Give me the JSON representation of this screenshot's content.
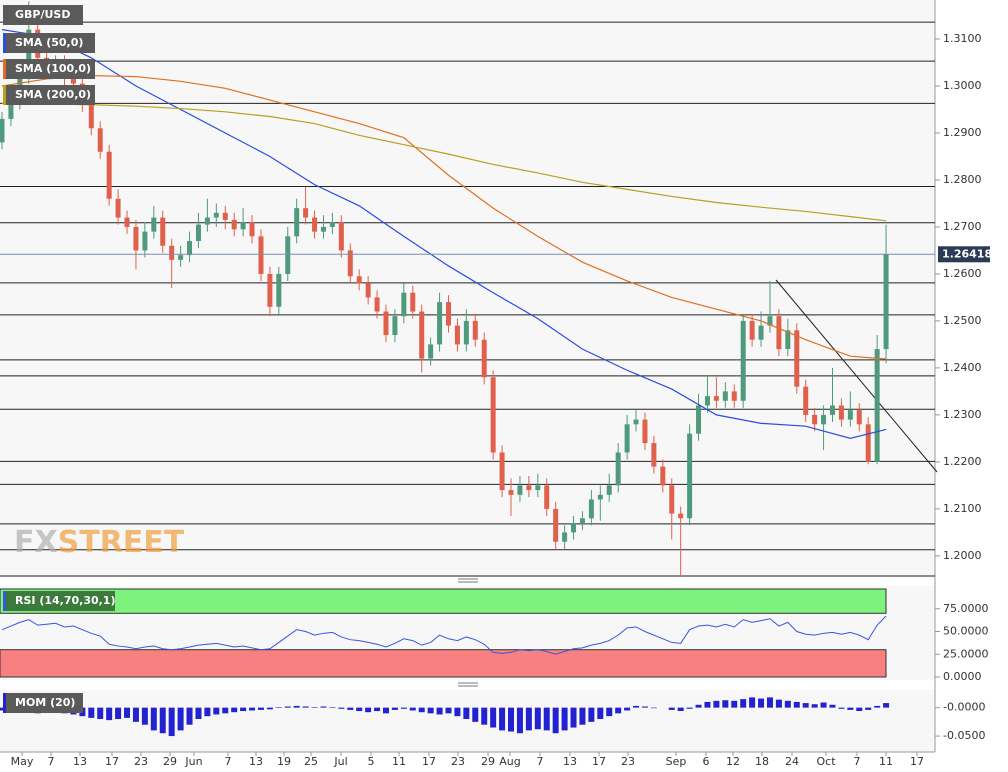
{
  "chart_data": [
    {
      "type": "candlestick",
      "title": "GBP/USD",
      "up_color": "#4f9a7c",
      "down_color": "#e0604c",
      "ohlc": [
        [
          1.288,
          1.2945,
          1.2865,
          1.293
        ],
        [
          1.293,
          1.298,
          1.2915,
          1.2965
        ],
        [
          1.2965,
          1.3035,
          1.295,
          1.302
        ],
        [
          1.302,
          1.318,
          1.3005,
          1.312
        ],
        [
          1.312,
          1.3135,
          1.3045,
          1.306
        ],
        [
          1.306,
          1.3075,
          1.302,
          1.3035
        ],
        [
          1.3035,
          1.3065,
          1.302,
          1.305
        ],
        [
          1.305,
          1.3065,
          1.3,
          1.3015
        ],
        [
          1.3015,
          1.303,
          1.299,
          1.3005
        ],
        [
          1.3005,
          1.302,
          1.2945,
          1.296
        ],
        [
          1.296,
          1.2975,
          1.2895,
          1.291
        ],
        [
          1.291,
          1.2925,
          1.2845,
          1.286
        ],
        [
          1.286,
          1.2875,
          1.2745,
          1.276
        ],
        [
          1.276,
          1.278,
          1.2705,
          1.272
        ],
        [
          1.272,
          1.2735,
          1.2685,
          1.27
        ],
        [
          1.27,
          1.2715,
          1.261,
          1.265
        ],
        [
          1.265,
          1.271,
          1.2635,
          1.269
        ],
        [
          1.269,
          1.2745,
          1.2675,
          1.272
        ],
        [
          1.272,
          1.2735,
          1.2645,
          1.266
        ],
        [
          1.266,
          1.2675,
          1.257,
          1.263
        ],
        [
          1.263,
          1.266,
          1.2615,
          1.264
        ],
        [
          1.264,
          1.269,
          1.2625,
          1.267
        ],
        [
          1.267,
          1.273,
          1.2655,
          1.2705
        ],
        [
          1.2705,
          1.276,
          1.269,
          1.272
        ],
        [
          1.272,
          1.275,
          1.27,
          1.273
        ],
        [
          1.273,
          1.2745,
          1.2695,
          1.2715
        ],
        [
          1.2715,
          1.273,
          1.268,
          1.2695
        ],
        [
          1.2695,
          1.274,
          1.268,
          1.271
        ],
        [
          1.271,
          1.2725,
          1.2665,
          1.268
        ],
        [
          1.268,
          1.2695,
          1.2585,
          1.26
        ],
        [
          1.26,
          1.2615,
          1.251,
          1.253
        ],
        [
          1.253,
          1.2615,
          1.2515,
          1.26
        ],
        [
          1.26,
          1.27,
          1.2585,
          1.268
        ],
        [
          1.268,
          1.276,
          1.2665,
          1.274
        ],
        [
          1.274,
          1.2785,
          1.2705,
          1.272
        ],
        [
          1.272,
          1.2735,
          1.2675,
          1.269
        ],
        [
          1.269,
          1.2725,
          1.2675,
          1.27
        ],
        [
          1.27,
          1.273,
          1.2685,
          1.271
        ],
        [
          1.271,
          1.2725,
          1.2635,
          1.265
        ],
        [
          1.265,
          1.2665,
          1.258,
          1.2595
        ],
        [
          1.2595,
          1.261,
          1.2565,
          1.258
        ],
        [
          1.258,
          1.2595,
          1.2535,
          1.255
        ],
        [
          1.255,
          1.2565,
          1.2505,
          1.252
        ],
        [
          1.252,
          1.2535,
          1.2455,
          1.247
        ],
        [
          1.247,
          1.2525,
          1.2455,
          1.251
        ],
        [
          1.251,
          1.258,
          1.2495,
          1.256
        ],
        [
          1.256,
          1.2575,
          1.2505,
          1.252
        ],
        [
          1.252,
          1.2535,
          1.239,
          1.242
        ],
        [
          1.242,
          1.2465,
          1.2405,
          1.245
        ],
        [
          1.245,
          1.256,
          1.2435,
          1.254
        ],
        [
          1.254,
          1.2555,
          1.2475,
          1.249
        ],
        [
          1.249,
          1.2505,
          1.2435,
          1.245
        ],
        [
          1.245,
          1.2525,
          1.2435,
          1.25
        ],
        [
          1.25,
          1.2515,
          1.2445,
          1.246
        ],
        [
          1.246,
          1.2475,
          1.2365,
          1.238
        ],
        [
          1.238,
          1.2395,
          1.2205,
          1.222
        ],
        [
          1.222,
          1.2235,
          1.2125,
          1.214
        ],
        [
          1.214,
          1.2165,
          1.2085,
          1.213
        ],
        [
          1.213,
          1.217,
          1.2115,
          1.215
        ],
        [
          1.215,
          1.217,
          1.2125,
          1.214
        ],
        [
          1.214,
          1.2175,
          1.2125,
          1.215
        ],
        [
          1.215,
          1.2165,
          1.2085,
          1.21
        ],
        [
          1.21,
          1.2115,
          1.2015,
          1.203
        ],
        [
          1.203,
          1.2065,
          1.2015,
          1.205
        ],
        [
          1.205,
          1.2085,
          1.2035,
          1.207
        ],
        [
          1.207,
          1.2095,
          1.2055,
          1.208
        ],
        [
          1.208,
          1.214,
          1.2065,
          1.212
        ],
        [
          1.212,
          1.215,
          1.2075,
          1.213
        ],
        [
          1.213,
          1.2175,
          1.2115,
          1.215
        ],
        [
          1.215,
          1.224,
          1.2135,
          1.222
        ],
        [
          1.222,
          1.23,
          1.2205,
          1.228
        ],
        [
          1.228,
          1.231,
          1.2265,
          1.229
        ],
        [
          1.229,
          1.2305,
          1.2225,
          1.224
        ],
        [
          1.224,
          1.2255,
          1.2175,
          1.219
        ],
        [
          1.219,
          1.2205,
          1.2135,
          1.215
        ],
        [
          1.215,
          1.2165,
          1.2035,
          1.209
        ],
        [
          1.209,
          1.2105,
          1.1955,
          1.208
        ],
        [
          1.208,
          1.228,
          1.2065,
          1.226
        ],
        [
          1.226,
          1.2345,
          1.2245,
          1.232
        ],
        [
          1.232,
          1.2385,
          1.2305,
          1.234
        ],
        [
          1.234,
          1.238,
          1.2315,
          1.233
        ],
        [
          1.233,
          1.237,
          1.2315,
          1.235
        ],
        [
          1.235,
          1.2365,
          1.2315,
          1.233
        ],
        [
          1.233,
          1.2515,
          1.2315,
          1.25
        ],
        [
          1.25,
          1.2515,
          1.2445,
          1.246
        ],
        [
          1.246,
          1.252,
          1.2445,
          1.249
        ],
        [
          1.249,
          1.2585,
          1.2475,
          1.251
        ],
        [
          1.251,
          1.2525,
          1.2425,
          1.244
        ],
        [
          1.244,
          1.2505,
          1.2425,
          1.248
        ],
        [
          1.248,
          1.2495,
          1.2345,
          1.236
        ],
        [
          1.236,
          1.2375,
          1.2285,
          1.23
        ],
        [
          1.23,
          1.2315,
          1.2265,
          1.228
        ],
        [
          1.228,
          1.232,
          1.2225,
          1.23
        ],
        [
          1.23,
          1.24,
          1.2285,
          1.232
        ],
        [
          1.232,
          1.2335,
          1.2275,
          1.229
        ],
        [
          1.229,
          1.235,
          1.2275,
          1.231
        ],
        [
          1.231,
          1.2325,
          1.2265,
          1.228
        ],
        [
          1.228,
          1.2295,
          1.2195,
          1.22
        ],
        [
          1.22,
          1.247,
          1.2195,
          1.244
        ],
        [
          1.244,
          1.2705,
          1.241,
          1.2642
        ]
      ],
      "series": [
        {
          "name": "SMA (50,0)",
          "color": "#2a4de0",
          "x": [
            0,
            5,
            10,
            15,
            20,
            25,
            30,
            35,
            40,
            45,
            50,
            55,
            60,
            65,
            70,
            75,
            80,
            85,
            90,
            95,
            99
          ],
          "values": [
            1.312,
            1.3105,
            1.306,
            1.3,
            1.295,
            1.29,
            1.285,
            1.279,
            1.2745,
            1.268,
            1.2617,
            1.256,
            1.2505,
            1.244,
            1.2395,
            1.2355,
            1.23,
            1.2282,
            1.2276,
            1.225,
            1.2269
          ]
        },
        {
          "name": "SMA (100,0)",
          "color": "#e07020",
          "x": [
            0,
            5,
            10,
            15,
            20,
            25,
            30,
            35,
            40,
            45,
            50,
            55,
            60,
            65,
            70,
            75,
            80,
            85,
            90,
            95,
            99
          ],
          "values": [
            1.3,
            1.3015,
            1.3022,
            1.302,
            1.301,
            1.2995,
            1.297,
            1.2945,
            1.292,
            1.289,
            1.281,
            1.274,
            1.268,
            1.2625,
            1.2585,
            1.255,
            1.2525,
            1.25,
            1.246,
            1.2425,
            1.2419
          ]
        },
        {
          "name": "SMA (200,0)",
          "color": "#b8a020",
          "x": [
            0,
            5,
            10,
            15,
            20,
            25,
            30,
            35,
            40,
            45,
            50,
            55,
            60,
            65,
            70,
            75,
            80,
            85,
            90,
            95,
            99
          ],
          "values": [
            1.2963,
            1.2962,
            1.296,
            1.2957,
            1.2952,
            1.2945,
            1.2935,
            1.292,
            1.2895,
            1.2875,
            1.2855,
            1.2833,
            1.2815,
            1.2795,
            1.278,
            1.2765,
            1.2752,
            1.2742,
            1.2733,
            1.2722,
            1.2713
          ]
        }
      ],
      "levels": [
        1.3136,
        1.3053,
        1.2963,
        1.2786,
        1.2709,
        1.2581,
        1.2513,
        1.2417,
        1.2383,
        1.2312,
        1.2201,
        1.2152,
        1.2068,
        1.2013,
        1.1957
      ],
      "last_price": 1.26418,
      "ylim": [
        1.1955,
        1.3183
      ],
      "yticks": [
        {
          "value": 1.31,
          "label": "1.3100"
        },
        {
          "value": 1.3,
          "label": "1.3000"
        },
        {
          "value": 1.29,
          "label": "1.2900"
        },
        {
          "value": 1.28,
          "label": "1.2800"
        },
        {
          "value": 1.27,
          "label": "1.2700"
        },
        {
          "value": 1.26,
          "label": "1.2600"
        },
        {
          "value": 1.25,
          "label": "1.2500"
        },
        {
          "value": 1.24,
          "label": "1.2400"
        },
        {
          "value": 1.23,
          "label": "1.2300"
        },
        {
          "value": 1.22,
          "label": "1.2200"
        },
        {
          "value": 1.21,
          "label": "1.2100"
        },
        {
          "value": 1.2,
          "label": "1.2000"
        }
      ],
      "x_labels": [
        "May",
        "7",
        "13",
        "17",
        "23",
        "29",
        "Jun",
        "7",
        "13",
        "19",
        "25",
        "Jul",
        "5",
        "11",
        "17",
        "23",
        "29",
        "Aug",
        "7",
        "13",
        "17",
        "23",
        "Sep",
        "6",
        "12",
        "18",
        "24",
        "Oct",
        "7",
        "11",
        "17"
      ],
      "watermark": [
        "FX",
        "STREET"
      ]
    },
    {
      "type": "line",
      "title": "RSI (14,70,30,1)",
      "color": "#3a55e0",
      "values": [
        52,
        56,
        60,
        63,
        57,
        58,
        59,
        55,
        56,
        52,
        48,
        45,
        36,
        34,
        33,
        31,
        33,
        34,
        31,
        30,
        31,
        33,
        35,
        36,
        37,
        35,
        33,
        34,
        32,
        30,
        31,
        38,
        45,
        52,
        50,
        46,
        48,
        49,
        44,
        41,
        40,
        38,
        36,
        33,
        37,
        42,
        40,
        35,
        38,
        46,
        42,
        40,
        44,
        41,
        36,
        27,
        26,
        27,
        30,
        29,
        30,
        28,
        25,
        28,
        31,
        32,
        35,
        37,
        40,
        46,
        54,
        55,
        50,
        46,
        42,
        38,
        37,
        52,
        56,
        57,
        55,
        58,
        55,
        63,
        60,
        62,
        64,
        56,
        60,
        50,
        47,
        46,
        48,
        49,
        47,
        49,
        46,
        41,
        57,
        67
      ],
      "upper": 70,
      "lower": 30,
      "ylim": [
        0,
        100
      ],
      "yticks": [
        {
          "value": 75,
          "label": "75.0000"
        },
        {
          "value": 50,
          "label": "50.0000"
        },
        {
          "value": 25,
          "label": "25.0000"
        },
        {
          "value": 0,
          "label": "0.0000"
        }
      ]
    },
    {
      "type": "bar",
      "title": "MOM (20)",
      "color": "#2222d0",
      "values": [
        -0.005,
        -0.004,
        -0.006,
        -0.008,
        -0.01,
        -0.008,
        -0.009,
        -0.01,
        -0.012,
        -0.015,
        -0.018,
        -0.02,
        -0.022,
        -0.02,
        -0.018,
        -0.025,
        -0.03,
        -0.04,
        -0.045,
        -0.05,
        -0.04,
        -0.03,
        -0.02,
        -0.015,
        -0.012,
        -0.01,
        -0.008,
        -0.006,
        -0.005,
        -0.004,
        -0.003,
        0.001,
        0.002,
        0.003,
        0.002,
        0.001,
        0.002,
        0.001,
        -0.002,
        -0.004,
        -0.006,
        -0.008,
        -0.006,
        -0.01,
        -0.004,
        -0.002,
        -0.005,
        -0.008,
        -0.01,
        -0.012,
        -0.01,
        -0.015,
        -0.02,
        -0.025,
        -0.03,
        -0.035,
        -0.04,
        -0.042,
        -0.045,
        -0.04,
        -0.038,
        -0.04,
        -0.045,
        -0.04,
        -0.035,
        -0.03,
        -0.025,
        -0.02,
        -0.015,
        -0.01,
        -0.005,
        0.003,
        0.002,
        -0.001,
        0,
        -0.004,
        -0.006,
        -0.002,
        0.005,
        0.01,
        0.012,
        0.013,
        0.012,
        0.015,
        0.018,
        0.016,
        0.018,
        0.014,
        0.012,
        0.01,
        0.008,
        0.006,
        0.009,
        0.005,
        -0.002,
        -0.004,
        -0.006,
        -0.004,
        0.003,
        0.008
      ],
      "ylim": [
        -0.078,
        0.031
      ],
      "yticks": [
        {
          "value": 0,
          "label": "-0.0000"
        },
        {
          "value": -0.05,
          "label": "-0.0500"
        }
      ]
    }
  ]
}
